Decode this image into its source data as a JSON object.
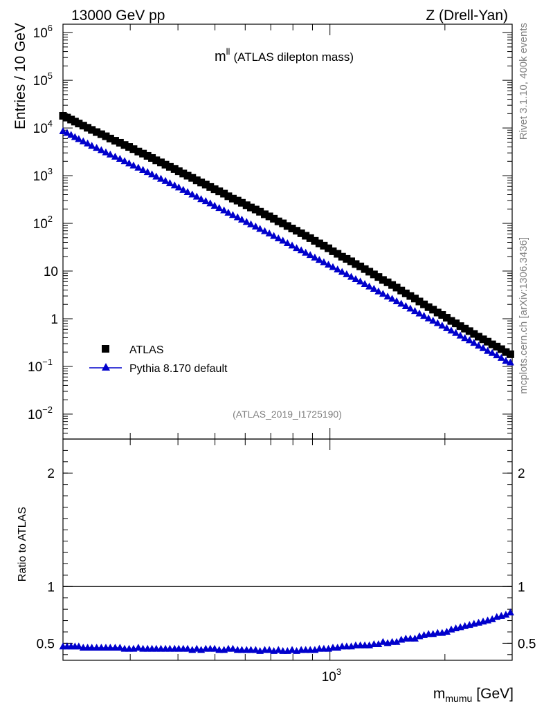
{
  "header": {
    "left": "13000 GeV pp",
    "right": "Z (Drell-Yan)"
  },
  "side_labels": {
    "top": "Rivet 3.1.10,  400k events",
    "bottom": "mcplots.cern.ch [arXiv:1306.3436]"
  },
  "plot_title": {
    "symbol": "m",
    "sup": "ll",
    "text": "(ATLAS dilepton mass)"
  },
  "analysis_tag": "(ATLAS_2019_I1725190)",
  "colors": {
    "data": "#000000",
    "mc": "#0000cc"
  },
  "chart_data": [
    {
      "type": "scatter",
      "panel": "main",
      "ylabel": "Entries / 10 GeV",
      "yscale": "log",
      "xscale": "log",
      "xlim": [
        200,
        3000
      ],
      "ylim": [
        0.003,
        1500000
      ],
      "y_ticks": [
        {
          "base": "10",
          "exp": "6"
        },
        {
          "base": "10",
          "exp": "5"
        },
        {
          "base": "10",
          "exp": "4"
        },
        {
          "base": "10",
          "exp": "3"
        },
        {
          "base": "10",
          "exp": "2"
        },
        {
          "base": "10",
          "exp": ""
        },
        {
          "base": "1",
          "exp": ""
        },
        {
          "base": "10",
          "exp": "−1"
        },
        {
          "base": "10",
          "exp": "−2"
        }
      ],
      "legend": {
        "placement": "bottom-left",
        "entries": [
          "ATLAS",
          "Pythia 8.170 default"
        ]
      },
      "series": [
        {
          "name": "ATLAS",
          "marker": "square",
          "x": [
            200,
            205,
            210,
            215,
            220,
            226,
            232,
            238,
            245,
            252,
            259,
            266,
            274,
            282,
            290,
            298,
            306,
            315,
            324,
            333,
            342,
            351,
            361,
            371,
            381,
            392,
            402,
            413,
            424,
            436,
            448,
            460,
            473,
            486,
            499,
            513,
            528,
            542,
            557,
            573,
            588,
            605,
            621,
            639,
            656,
            675,
            694,
            713,
            733,
            753,
            774,
            796,
            818,
            841,
            864,
            888,
            913,
            938,
            964,
            991,
            1018,
            1047,
            1076,
            1106,
            1137,
            1168,
            1201,
            1234,
            1268,
            1304,
            1340,
            1377,
            1416,
            1455,
            1495,
            1537,
            1580,
            1624,
            1669,
            1715,
            1763,
            1812,
            1862,
            1914,
            1967,
            2022,
            2078,
            2136,
            2195,
            2256,
            2319,
            2383,
            2450,
            2518,
            2588,
            2660,
            2734,
            2810,
            2888,
            2968
          ],
          "y": [
            18000,
            16500,
            15000,
            13600,
            12400,
            11200,
            10100,
            9100,
            8200,
            7400,
            6700,
            6000,
            5400,
            4900,
            4400,
            4000,
            3600,
            3200,
            2900,
            2600,
            2350,
            2100,
            1900,
            1700,
            1530,
            1380,
            1240,
            1110,
            1000,
            900,
            800,
            720,
            650,
            580,
            520,
            470,
            420,
            370,
            330,
            300,
            270,
            240,
            215,
            195,
            175,
            155,
            140,
            125,
            110,
            100,
            88,
            78,
            70,
            62,
            55,
            49,
            43,
            38,
            34,
            30,
            26,
            23,
            20,
            18,
            16,
            14,
            12.5,
            11,
            9.7,
            8.5,
            7.5,
            6.5,
            5.8,
            5.1,
            4.5,
            3.9,
            3.4,
            3.0,
            2.65,
            2.3,
            2.0,
            1.75,
            1.55,
            1.35,
            1.2,
            1.05,
            0.9,
            0.8,
            0.7,
            0.62,
            0.55,
            0.48,
            0.42,
            0.37,
            0.33,
            0.29,
            0.26,
            0.23,
            0.2,
            0.18
          ]
        },
        {
          "name": "Pythia 8.170 default",
          "marker": "triangle",
          "x": [
            200,
            205,
            210,
            215,
            220,
            226,
            232,
            238,
            245,
            252,
            259,
            266,
            274,
            282,
            290,
            298,
            306,
            315,
            324,
            333,
            342,
            351,
            361,
            371,
            381,
            392,
            402,
            413,
            424,
            436,
            448,
            460,
            473,
            486,
            499,
            513,
            528,
            542,
            557,
            573,
            588,
            605,
            621,
            639,
            656,
            675,
            694,
            713,
            733,
            753,
            774,
            796,
            818,
            841,
            864,
            888,
            913,
            938,
            964,
            991,
            1018,
            1047,
            1076,
            1106,
            1137,
            1168,
            1201,
            1234,
            1268,
            1304,
            1340,
            1377,
            1416,
            1455,
            1495,
            1537,
            1580,
            1624,
            1669,
            1715,
            1763,
            1812,
            1862,
            1914,
            1967,
            2022,
            2078,
            2136,
            2195,
            2256,
            2319,
            2383,
            2450,
            2518,
            2588,
            2660,
            2734,
            2810,
            2888,
            2968
          ],
          "y": [
            8500,
            7800,
            7100,
            6400,
            5800,
            5200,
            4700,
            4200,
            3800,
            3400,
            3050,
            2750,
            2480,
            2230,
            2000,
            1800,
            1620,
            1460,
            1310,
            1180,
            1060,
            950,
            855,
            770,
            690,
            620,
            560,
            500,
            450,
            400,
            360,
            320,
            290,
            260,
            232,
            208,
            186,
            166,
            148,
            133,
            119,
            106,
            95,
            85,
            76,
            68,
            61,
            54,
            48,
            43,
            38,
            34,
            30,
            27,
            24,
            21.5,
            19,
            17,
            15.2,
            13.5,
            12,
            10.7,
            9.5,
            8.5,
            7.5,
            6.7,
            6.0,
            5.3,
            4.7,
            4.2,
            3.7,
            3.3,
            2.9,
            2.6,
            2.3,
            2.05,
            1.82,
            1.62,
            1.44,
            1.28,
            1.14,
            1.01,
            0.9,
            0.8,
            0.71,
            0.63,
            0.56,
            0.5,
            0.44,
            0.39,
            0.35,
            0.31,
            0.27,
            0.24,
            0.21,
            0.19,
            0.17,
            0.15,
            0.13,
            0.12
          ]
        }
      ]
    },
    {
      "type": "line",
      "panel": "ratio",
      "xlabel": "m",
      "xlabel_sub": "mumu",
      "xlabel_unit": "[GeV]",
      "ylabel": "Ratio to ATLAS",
      "xscale": "log",
      "xlim": [
        200,
        3000
      ],
      "ylim": [
        0.35,
        2.3
      ],
      "y_ticks": [
        "2",
        "1",
        "0.5"
      ],
      "x_ticks": [
        {
          "base": "10",
          "exp": "3"
        }
      ],
      "reference_line": 1,
      "series": [
        {
          "name": "Pythia 8.170 default",
          "x": [
            200,
            205,
            210,
            215,
            220,
            226,
            232,
            238,
            245,
            252,
            259,
            266,
            274,
            282,
            290,
            298,
            306,
            315,
            324,
            333,
            342,
            351,
            361,
            371,
            381,
            392,
            402,
            413,
            424,
            436,
            448,
            460,
            473,
            486,
            499,
            513,
            528,
            542,
            557,
            573,
            588,
            605,
            621,
            639,
            656,
            675,
            694,
            713,
            733,
            753,
            774,
            796,
            818,
            841,
            864,
            888,
            913,
            938,
            964,
            991,
            1018,
            1047,
            1076,
            1106,
            1137,
            1168,
            1201,
            1234,
            1268,
            1304,
            1340,
            1377,
            1416,
            1455,
            1495,
            1537,
            1580,
            1624,
            1669,
            1715,
            1763,
            1812,
            1862,
            1914,
            1967,
            2022,
            2078,
            2136,
            2195,
            2256,
            2319,
            2383,
            2450,
            2518,
            2588,
            2660,
            2734,
            2810,
            2888,
            2968
          ],
          "y": [
            0.47,
            0.47,
            0.47,
            0.47,
            0.47,
            0.46,
            0.46,
            0.46,
            0.46,
            0.46,
            0.46,
            0.46,
            0.46,
            0.46,
            0.45,
            0.45,
            0.45,
            0.46,
            0.45,
            0.45,
            0.45,
            0.45,
            0.45,
            0.45,
            0.45,
            0.45,
            0.45,
            0.45,
            0.45,
            0.44,
            0.45,
            0.44,
            0.45,
            0.45,
            0.45,
            0.44,
            0.44,
            0.45,
            0.45,
            0.44,
            0.44,
            0.44,
            0.44,
            0.44,
            0.43,
            0.44,
            0.44,
            0.43,
            0.44,
            0.43,
            0.43,
            0.44,
            0.43,
            0.44,
            0.44,
            0.44,
            0.44,
            0.45,
            0.45,
            0.45,
            0.46,
            0.46,
            0.47,
            0.47,
            0.47,
            0.48,
            0.48,
            0.48,
            0.48,
            0.49,
            0.49,
            0.51,
            0.5,
            0.51,
            0.51,
            0.53,
            0.54,
            0.54,
            0.54,
            0.56,
            0.57,
            0.58,
            0.58,
            0.59,
            0.59,
            0.6,
            0.62,
            0.63,
            0.64,
            0.65,
            0.66,
            0.67,
            0.68,
            0.69,
            0.7,
            0.71,
            0.73,
            0.74,
            0.75,
            0.77
          ]
        }
      ]
    }
  ]
}
